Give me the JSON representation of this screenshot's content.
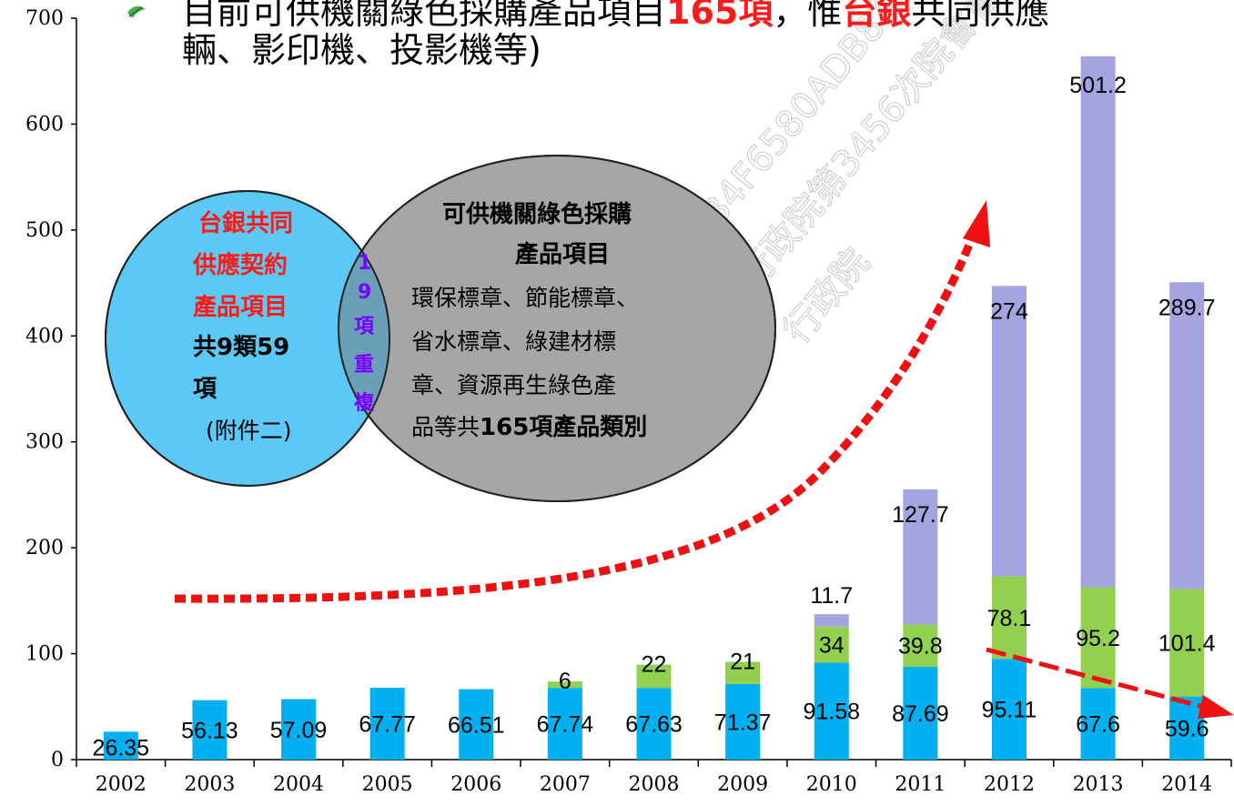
{
  "headline": {
    "line1_a": "目前可供機關綠色採購產品項目",
    "line1_red1": "165項",
    "line1_b": "，惟",
    "line1_red2": "台銀",
    "line1_c": "共同供應",
    "line2": "輛、影印機、投影機等)",
    "bullet_icon": "leaf-bullet-icon"
  },
  "watermark": {
    "line1": "34F6580ADB84DC",
    "line2": "行政院第3456次院會會議",
    "line3": "行政院"
  },
  "venn": {
    "left_circle_red_lines": [
      "台銀共同",
      "供應契約",
      "產品項目"
    ],
    "left_circle_bold_lines": [
      "共9類59",
      "項"
    ],
    "left_circle_note": "(附件二)",
    "overlap_chars": [
      "1",
      "9",
      "項",
      "重",
      "複"
    ],
    "right_circle_title_lines": [
      "可供機關綠色採購",
      "產品項目"
    ],
    "right_circle_body_lines": [
      "環保標章、節能標章、",
      "省水標章、綠建材標",
      "章、資源再生綠色產"
    ],
    "right_circle_last_normal": "品等共",
    "right_circle_last_bold": "165項產品類別",
    "colors": {
      "left": "#5bc8f5",
      "right": "#a6a6a6",
      "overlap": "#6a9fb8"
    }
  },
  "chart_data": {
    "type": "bar",
    "stacked": true,
    "categories": [
      "2002",
      "2003",
      "2004",
      "2005",
      "2006",
      "2007",
      "2008",
      "2009",
      "2010",
      "2011",
      "2012",
      "2013",
      "2014"
    ],
    "series": [
      {
        "values": [
          26.35,
          56.13,
          57.09,
          67.77,
          66.51,
          67.74,
          67.63,
          71.37,
          91.58,
          87.69,
          95.11,
          67.6,
          59.6
        ],
        "labels": [
          "26.35",
          "56.13",
          "57.09",
          "67.77",
          "66.51",
          "67.74",
          "67.63",
          "71.37",
          "91.58",
          "87.69",
          "95.11",
          "67.6",
          "59.6"
        ],
        "color": "#00b0f0"
      },
      {
        "values": [
          null,
          null,
          null,
          null,
          null,
          6,
          22,
          21,
          34,
          39.8,
          78.1,
          95.2,
          101.4
        ],
        "labels": [
          "",
          "",
          "",
          "",
          "",
          "6",
          "22",
          "21",
          "34",
          "39.8",
          "78.1",
          "95.2",
          "101.4"
        ],
        "color": "#92d050"
      },
      {
        "values": [
          null,
          null,
          null,
          null,
          null,
          null,
          null,
          null,
          11.7,
          127.7,
          274,
          501.2,
          289.7
        ],
        "labels": [
          "",
          "",
          "",
          "",
          "",
          "",
          "",
          "",
          "11.7",
          "127.7",
          "274",
          "501.2",
          "289.7"
        ],
        "color": "#a4a4e0"
      }
    ],
    "ylim": [
      0,
      700
    ],
    "yticks": [
      "0",
      "100",
      "200",
      "300",
      "400",
      "500",
      "600",
      "700"
    ],
    "grid": false,
    "legend": "none",
    "annotations": {
      "trend_up_color": "#ee1111",
      "trend_down_color": "#ee1111"
    }
  }
}
